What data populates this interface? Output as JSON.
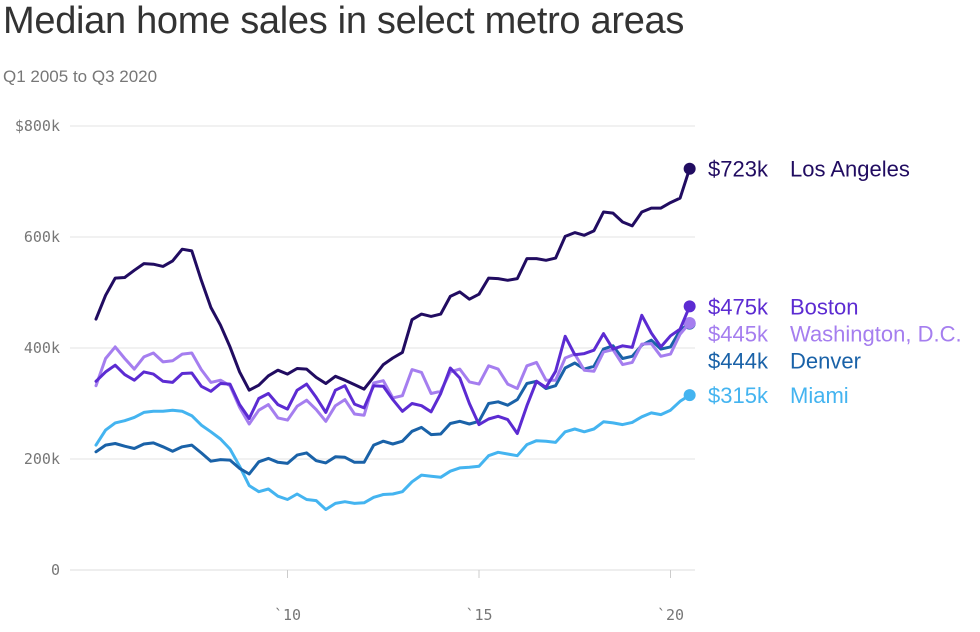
{
  "header": {
    "title": "Median home sales in select metro areas",
    "subtitle": "Q1 2005 to Q3 2020"
  },
  "chart_data": {
    "type": "line",
    "title": "Median home sales in select metro areas",
    "subtitle": "Q1 2005 to Q3 2020",
    "xlabel": "",
    "ylabel": "",
    "x_start": 2005.0,
    "x_step": 0.25,
    "xlim": [
      2005,
      2020.75
    ],
    "ylim": [
      0,
      800
    ],
    "y_unit": "thousand dollars",
    "y_ticks": [
      {
        "value": 0,
        "label": "0"
      },
      {
        "value": 200,
        "label": "200k"
      },
      {
        "value": 400,
        "label": "400k"
      },
      {
        "value": 600,
        "label": "600k"
      },
      {
        "value": 800,
        "label": "$800k"
      }
    ],
    "x_ticks": [
      {
        "value": 2010,
        "label": "`10"
      },
      {
        "value": 2015,
        "label": "`15"
      },
      {
        "value": 2020,
        "label": "`20"
      }
    ],
    "grid": true,
    "series": [
      {
        "name": "Miami",
        "color": "#44b4f0",
        "end_label": "$315k",
        "values": [
          225,
          252,
          265,
          269,
          275,
          284,
          286,
          286,
          288,
          286,
          278,
          261,
          249,
          236,
          218,
          187,
          152,
          141,
          146,
          133,
          127,
          137,
          127,
          125,
          109,
          120,
          123,
          120,
          121,
          131,
          136,
          137,
          141,
          159,
          171,
          169,
          167,
          178,
          184,
          185,
          187,
          206,
          212,
          209,
          206,
          226,
          233,
          232,
          230,
          249,
          254,
          249,
          254,
          267,
          265,
          262,
          266,
          276,
          283,
          280,
          288,
          304,
          315
        ]
      },
      {
        "name": "Denver",
        "color": "#1a62a8",
        "end_label": "$444k",
        "values": [
          213,
          225,
          228,
          223,
          219,
          227,
          229,
          222,
          214,
          222,
          225,
          211,
          196,
          199,
          198,
          183,
          173,
          195,
          201,
          194,
          192,
          207,
          211,
          197,
          193,
          204,
          203,
          194,
          194,
          225,
          232,
          227,
          232,
          250,
          257,
          244,
          245,
          264,
          268,
          263,
          268,
          300,
          303,
          297,
          307,
          336,
          340,
          327,
          332,
          364,
          373,
          362,
          367,
          398,
          404,
          381,
          385,
          405,
          414,
          398,
          402,
          432,
          444
        ]
      },
      {
        "name": "Washington, D.C.",
        "color": "#a57eef",
        "end_label": "$445k",
        "values": [
          332,
          381,
          402,
          381,
          362,
          384,
          391,
          375,
          377,
          389,
          391,
          361,
          338,
          342,
          332,
          293,
          263,
          288,
          298,
          274,
          270,
          295,
          306,
          289,
          268,
          296,
          307,
          281,
          279,
          337,
          341,
          310,
          314,
          361,
          356,
          318,
          322,
          357,
          362,
          339,
          335,
          368,
          362,
          335,
          327,
          368,
          374,
          342,
          342,
          382,
          389,
          360,
          358,
          393,
          397,
          370,
          374,
          407,
          408,
          385,
          389,
          425,
          445
        ]
      },
      {
        "name": "Boston",
        "color": "#5c2bd2",
        "end_label": "$475k",
        "values": [
          340,
          357,
          369,
          352,
          342,
          357,
          353,
          340,
          338,
          354,
          355,
          331,
          322,
          336,
          335,
          298,
          273,
          309,
          318,
          298,
          290,
          324,
          335,
          311,
          284,
          324,
          332,
          299,
          292,
          332,
          331,
          307,
          286,
          300,
          296,
          285,
          318,
          364,
          346,
          300,
          262,
          272,
          277,
          271,
          246,
          296,
          340,
          329,
          358,
          421,
          388,
          390,
          396,
          426,
          398,
          404,
          401,
          459,
          427,
          402,
          422,
          434,
          475
        ]
      },
      {
        "name": "Los Angeles",
        "color": "#210c61",
        "end_label": "$723k",
        "values": [
          452,
          495,
          526,
          527,
          540,
          552,
          551,
          547,
          557,
          578,
          575,
          522,
          473,
          441,
          402,
          357,
          324,
          333,
          350,
          360,
          353,
          363,
          362,
          347,
          336,
          349,
          342,
          334,
          326,
          348,
          370,
          382,
          392,
          451,
          461,
          457,
          461,
          493,
          501,
          488,
          497,
          526,
          525,
          522,
          525,
          561,
          561,
          558,
          562,
          601,
          608,
          603,
          611,
          645,
          643,
          627,
          620,
          645,
          652,
          652,
          662,
          670,
          723
        ]
      }
    ]
  }
}
